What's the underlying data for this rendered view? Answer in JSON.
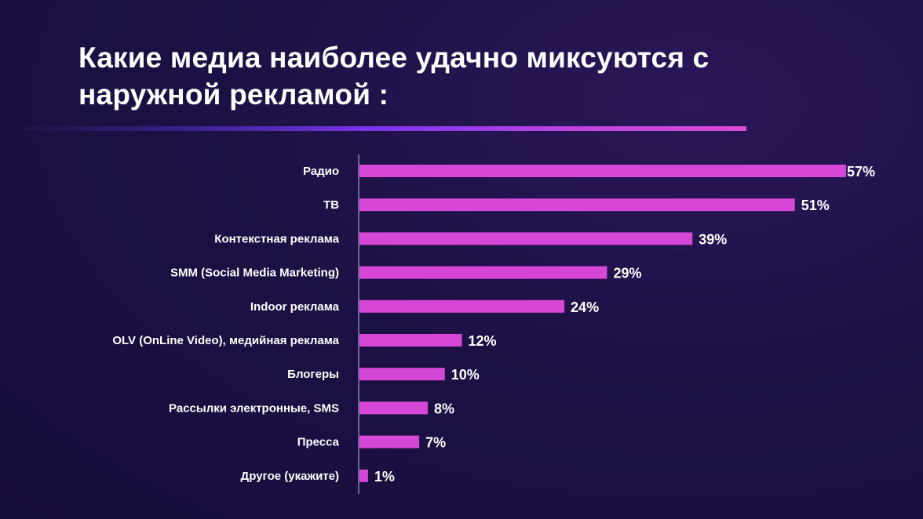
{
  "chart_data": {
    "type": "bar",
    "orientation": "horizontal",
    "title": "Какие медиа наиболее удачно миксуются с наружной рекламой :",
    "categories": [
      "Радио",
      "ТВ",
      "Контекстная реклама",
      "SMM (Social Media Marketing)",
      "Indoor реклама",
      "OLV (OnLine Video), медийная реклама",
      "Блогеры",
      "Рассылки электронные, SMS",
      "Пресса",
      "Другое (укажите)"
    ],
    "values": [
      57,
      51,
      39,
      29,
      24,
      12,
      10,
      8,
      7,
      1
    ],
    "value_labels": [
      "57%",
      "51%",
      "39%",
      "29%",
      "24%",
      "12%",
      "10%",
      "8%",
      "7%",
      "1%"
    ],
    "unit": "%",
    "xlim": [
      0,
      57
    ],
    "grid": false,
    "colors": {
      "bar": "#d647d8",
      "axis": "#8a7fb8"
    }
  }
}
